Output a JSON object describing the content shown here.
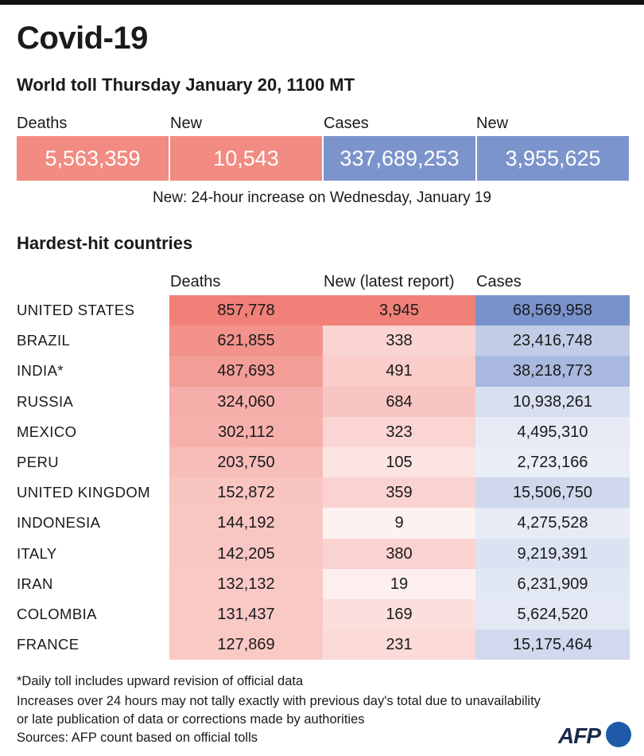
{
  "title": "Covid-19",
  "subtitle": "World toll Thursday January 20, 1100 MT",
  "totals": {
    "deaths_label": "Deaths",
    "deaths_value": "5,563,359",
    "new_deaths_label": "New",
    "new_deaths_value": "10,543",
    "cases_label": "Cases",
    "cases_value": "337,689,253",
    "new_cases_label": "New",
    "new_cases_value": "3,955,625"
  },
  "note": "New: 24-hour increase on Wednesday, January 19",
  "colors": {
    "deaths": "#f28b82",
    "cases": "#7c94cc"
  },
  "chart_data": {
    "type": "table",
    "title": "Hardest-hit countries",
    "columns": [
      "Deaths",
      "New (latest report)",
      "Cases"
    ],
    "rows": [
      {
        "country": "UNITED STATES",
        "deaths": 857778,
        "new": 3945,
        "cases": 68569958
      },
      {
        "country": "BRAZIL",
        "deaths": 621855,
        "new": 338,
        "cases": 23416748
      },
      {
        "country": "INDIA*",
        "deaths": 487693,
        "new": 491,
        "cases": 38218773
      },
      {
        "country": "RUSSIA",
        "deaths": 324060,
        "new": 684,
        "cases": 10938261
      },
      {
        "country": "MEXICO",
        "deaths": 302112,
        "new": 323,
        "cases": 4495310
      },
      {
        "country": "PERU",
        "deaths": 203750,
        "new": 105,
        "cases": 2723166
      },
      {
        "country": "UNITED KINGDOM",
        "deaths": 152872,
        "new": 359,
        "cases": 15506750
      },
      {
        "country": "INDONESIA",
        "deaths": 144192,
        "new": 9,
        "cases": 4275528
      },
      {
        "country": "ITALY",
        "deaths": 142205,
        "new": 380,
        "cases": 9219391
      },
      {
        "country": "IRAN",
        "deaths": 132132,
        "new": 19,
        "cases": 6231909
      },
      {
        "country": "COLOMBIA",
        "deaths": 131437,
        "new": 169,
        "cases": 5624520
      },
      {
        "country": "FRANCE",
        "deaths": 127869,
        "new": 231,
        "cases": 15175464
      }
    ]
  },
  "footnotes": [
    "*Daily toll includes upward revision of official data",
    "Increases over 24 hours may not tally exactly with previous day's total due to unavailability",
    "or late publication of data or corrections made by authorities",
    "Sources: AFP count based on official tolls"
  ],
  "logo": "AFP"
}
